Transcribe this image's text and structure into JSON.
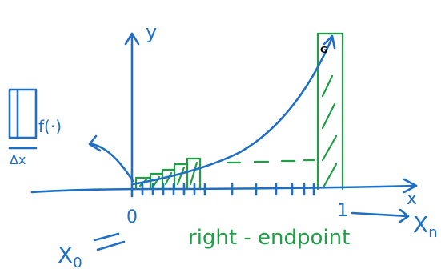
{
  "labels": {
    "y_axis": "y",
    "x_axis": "x",
    "origin": "0",
    "one": "1",
    "box_label": "f(·)",
    "delta_x": "Δx",
    "x_n": {
      "base": "X",
      "sub": "n"
    },
    "x_0": {
      "base": "X",
      "sub": "0"
    },
    "method": "right - endpoint",
    "corner_mark": "G"
  }
}
